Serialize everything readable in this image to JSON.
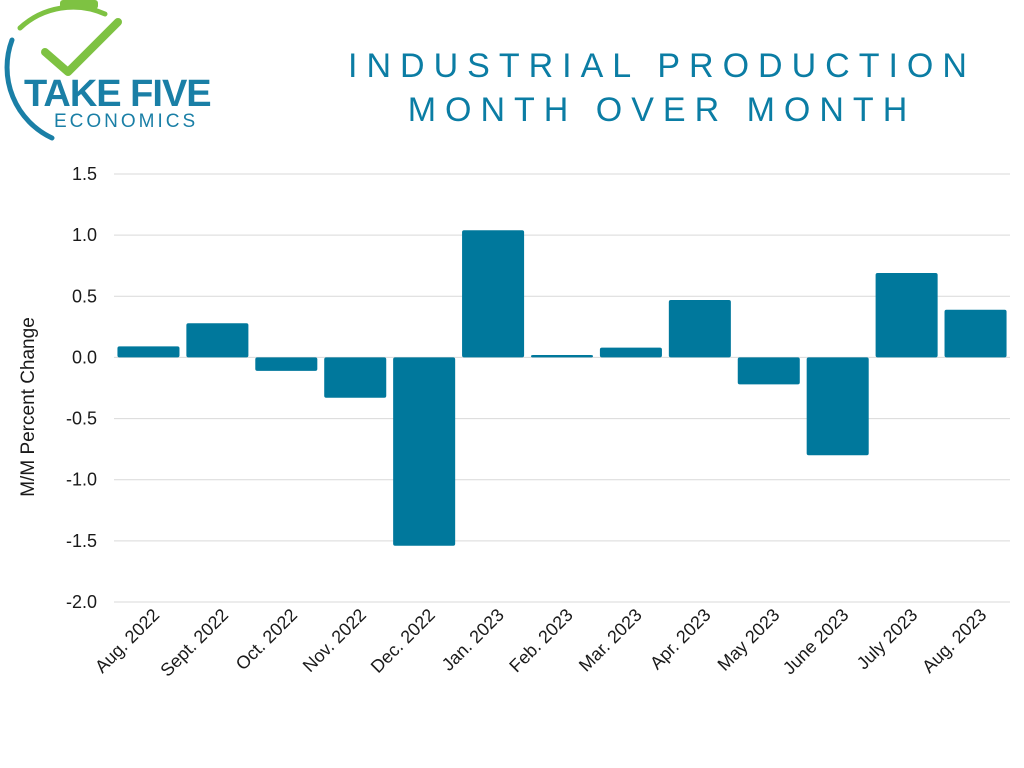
{
  "logo": {
    "line1": "TAKE FIVE",
    "line2": "ECONOMICS",
    "colors": {
      "teal": "#1a7fa6",
      "green": "#7ec242"
    }
  },
  "title": {
    "line1": "INDUSTRIAL PRODUCTION",
    "line2": "MONTH OVER MONTH"
  },
  "chart_data": {
    "type": "bar",
    "title": "INDUSTRIAL PRODUCTION MONTH OVER MONTH",
    "xlabel": "",
    "ylabel": "M/M Percent Change",
    "ylim": [
      -2.0,
      1.5
    ],
    "yticks": [
      1.5,
      1.0,
      0.5,
      0.0,
      -0.5,
      -1.0,
      -1.5,
      -2.0
    ],
    "ytick_labels": [
      "1.5",
      "1.0",
      "0.5",
      "0.0",
      "-0.5",
      "-1.0",
      "-1.5",
      "-2.0"
    ],
    "grid": true,
    "bar_color": "#00789c",
    "categories": [
      "Aug. 2022",
      "Sept. 2022",
      "Oct. 2022",
      "Nov. 2022",
      "Dec. 2022",
      "Jan. 2023",
      "Feb. 2023",
      "Mar. 2023",
      "Apr. 2023",
      "May 2023",
      "June 2023",
      "July 2023",
      "Aug. 2023"
    ],
    "values": [
      0.09,
      0.28,
      -0.11,
      -0.33,
      -1.54,
      1.04,
      0.02,
      0.08,
      0.47,
      -0.22,
      -0.8,
      0.69,
      0.39
    ]
  }
}
